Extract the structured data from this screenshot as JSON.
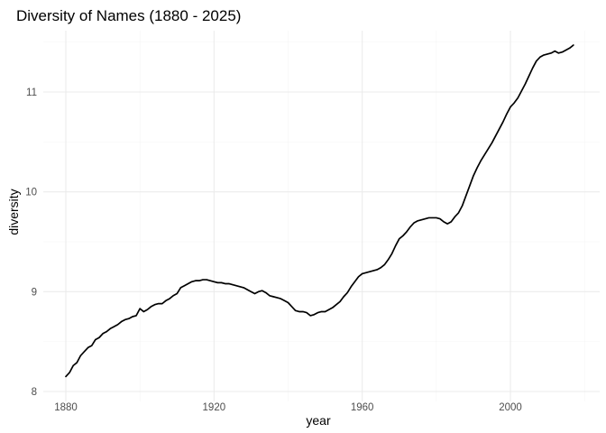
{
  "chart_data": {
    "type": "line",
    "title": "Diversity of Names (1880 - 2025)",
    "xlabel": "year",
    "ylabel": "diversity",
    "xlim": [
      1875,
      2022
    ],
    "ylim": [
      8.0,
      11.6
    ],
    "x_ticks": [
      1880,
      1920,
      1960,
      2000
    ],
    "x_tick_labels": [
      "1880",
      "1920",
      "1960",
      "2000"
    ],
    "x_minor_ticks": [
      1900,
      1940,
      1980,
      2020
    ],
    "y_ticks": [
      8,
      9,
      10,
      11
    ],
    "y_tick_labels": [
      "8",
      "9",
      "10",
      "11"
    ],
    "y_minor_ticks": [
      8.5,
      9.5,
      10.5,
      11.5
    ],
    "grid": true,
    "series": [
      {
        "name": "diversity",
        "color": "#000000",
        "x": [
          1880,
          1881,
          1882,
          1883,
          1884,
          1885,
          1886,
          1887,
          1888,
          1889,
          1890,
          1891,
          1892,
          1893,
          1894,
          1895,
          1896,
          1897,
          1898,
          1899,
          1900,
          1901,
          1902,
          1903,
          1904,
          1905,
          1906,
          1907,
          1908,
          1909,
          1910,
          1911,
          1912,
          1913,
          1914,
          1915,
          1916,
          1917,
          1918,
          1919,
          1920,
          1921,
          1922,
          1923,
          1924,
          1925,
          1926,
          1927,
          1928,
          1929,
          1930,
          1931,
          1932,
          1933,
          1934,
          1935,
          1936,
          1937,
          1938,
          1939,
          1940,
          1941,
          1942,
          1943,
          1944,
          1945,
          1946,
          1947,
          1948,
          1949,
          1950,
          1951,
          1952,
          1953,
          1954,
          1955,
          1956,
          1957,
          1958,
          1959,
          1960,
          1961,
          1962,
          1963,
          1964,
          1965,
          1966,
          1967,
          1968,
          1969,
          1970,
          1971,
          1972,
          1973,
          1974,
          1975,
          1976,
          1977,
          1978,
          1979,
          1980,
          1981,
          1982,
          1983,
          1984,
          1985,
          1986,
          1987,
          1988,
          1989,
          1990,
          1991,
          1992,
          1993,
          1994,
          1995,
          1996,
          1997,
          1998,
          1999,
          2000,
          2001,
          2002,
          2003,
          2004,
          2005,
          2006,
          2007,
          2008,
          2009,
          2010,
          2011,
          2012,
          2013,
          2014,
          2015,
          2016,
          2017
        ],
        "values": [
          8.15,
          8.19,
          8.26,
          8.29,
          8.36,
          8.4,
          8.44,
          8.46,
          8.52,
          8.54,
          8.58,
          8.6,
          8.63,
          8.65,
          8.67,
          8.7,
          8.72,
          8.73,
          8.75,
          8.76,
          8.83,
          8.8,
          8.82,
          8.85,
          8.87,
          8.88,
          8.88,
          8.91,
          8.93,
          8.96,
          8.98,
          9.04,
          9.06,
          9.08,
          9.1,
          9.11,
          9.11,
          9.12,
          9.12,
          9.11,
          9.1,
          9.09,
          9.09,
          9.08,
          9.08,
          9.07,
          9.06,
          9.05,
          9.04,
          9.02,
          9.0,
          8.98,
          9.0,
          9.01,
          8.99,
          8.96,
          8.95,
          8.94,
          8.93,
          8.91,
          8.89,
          8.85,
          8.81,
          8.8,
          8.8,
          8.79,
          8.76,
          8.77,
          8.79,
          8.8,
          8.8,
          8.82,
          8.84,
          8.87,
          8.9,
          8.95,
          8.99,
          9.05,
          9.1,
          9.15,
          9.18,
          9.19,
          9.2,
          9.21,
          9.22,
          9.24,
          9.27,
          9.32,
          9.38,
          9.46,
          9.53,
          9.56,
          9.6,
          9.65,
          9.69,
          9.71,
          9.72,
          9.73,
          9.74,
          9.74,
          9.74,
          9.73,
          9.7,
          9.68,
          9.7,
          9.75,
          9.79,
          9.86,
          9.96,
          10.06,
          10.16,
          10.24,
          10.31,
          10.37,
          10.43,
          10.49,
          10.56,
          10.63,
          10.7,
          10.78,
          10.85,
          10.89,
          10.94,
          11.01,
          11.08,
          11.16,
          11.24,
          11.31,
          11.35,
          11.37,
          11.38,
          11.39,
          11.41,
          11.39,
          11.4,
          11.42,
          11.44,
          11.47
        ]
      }
    ]
  }
}
